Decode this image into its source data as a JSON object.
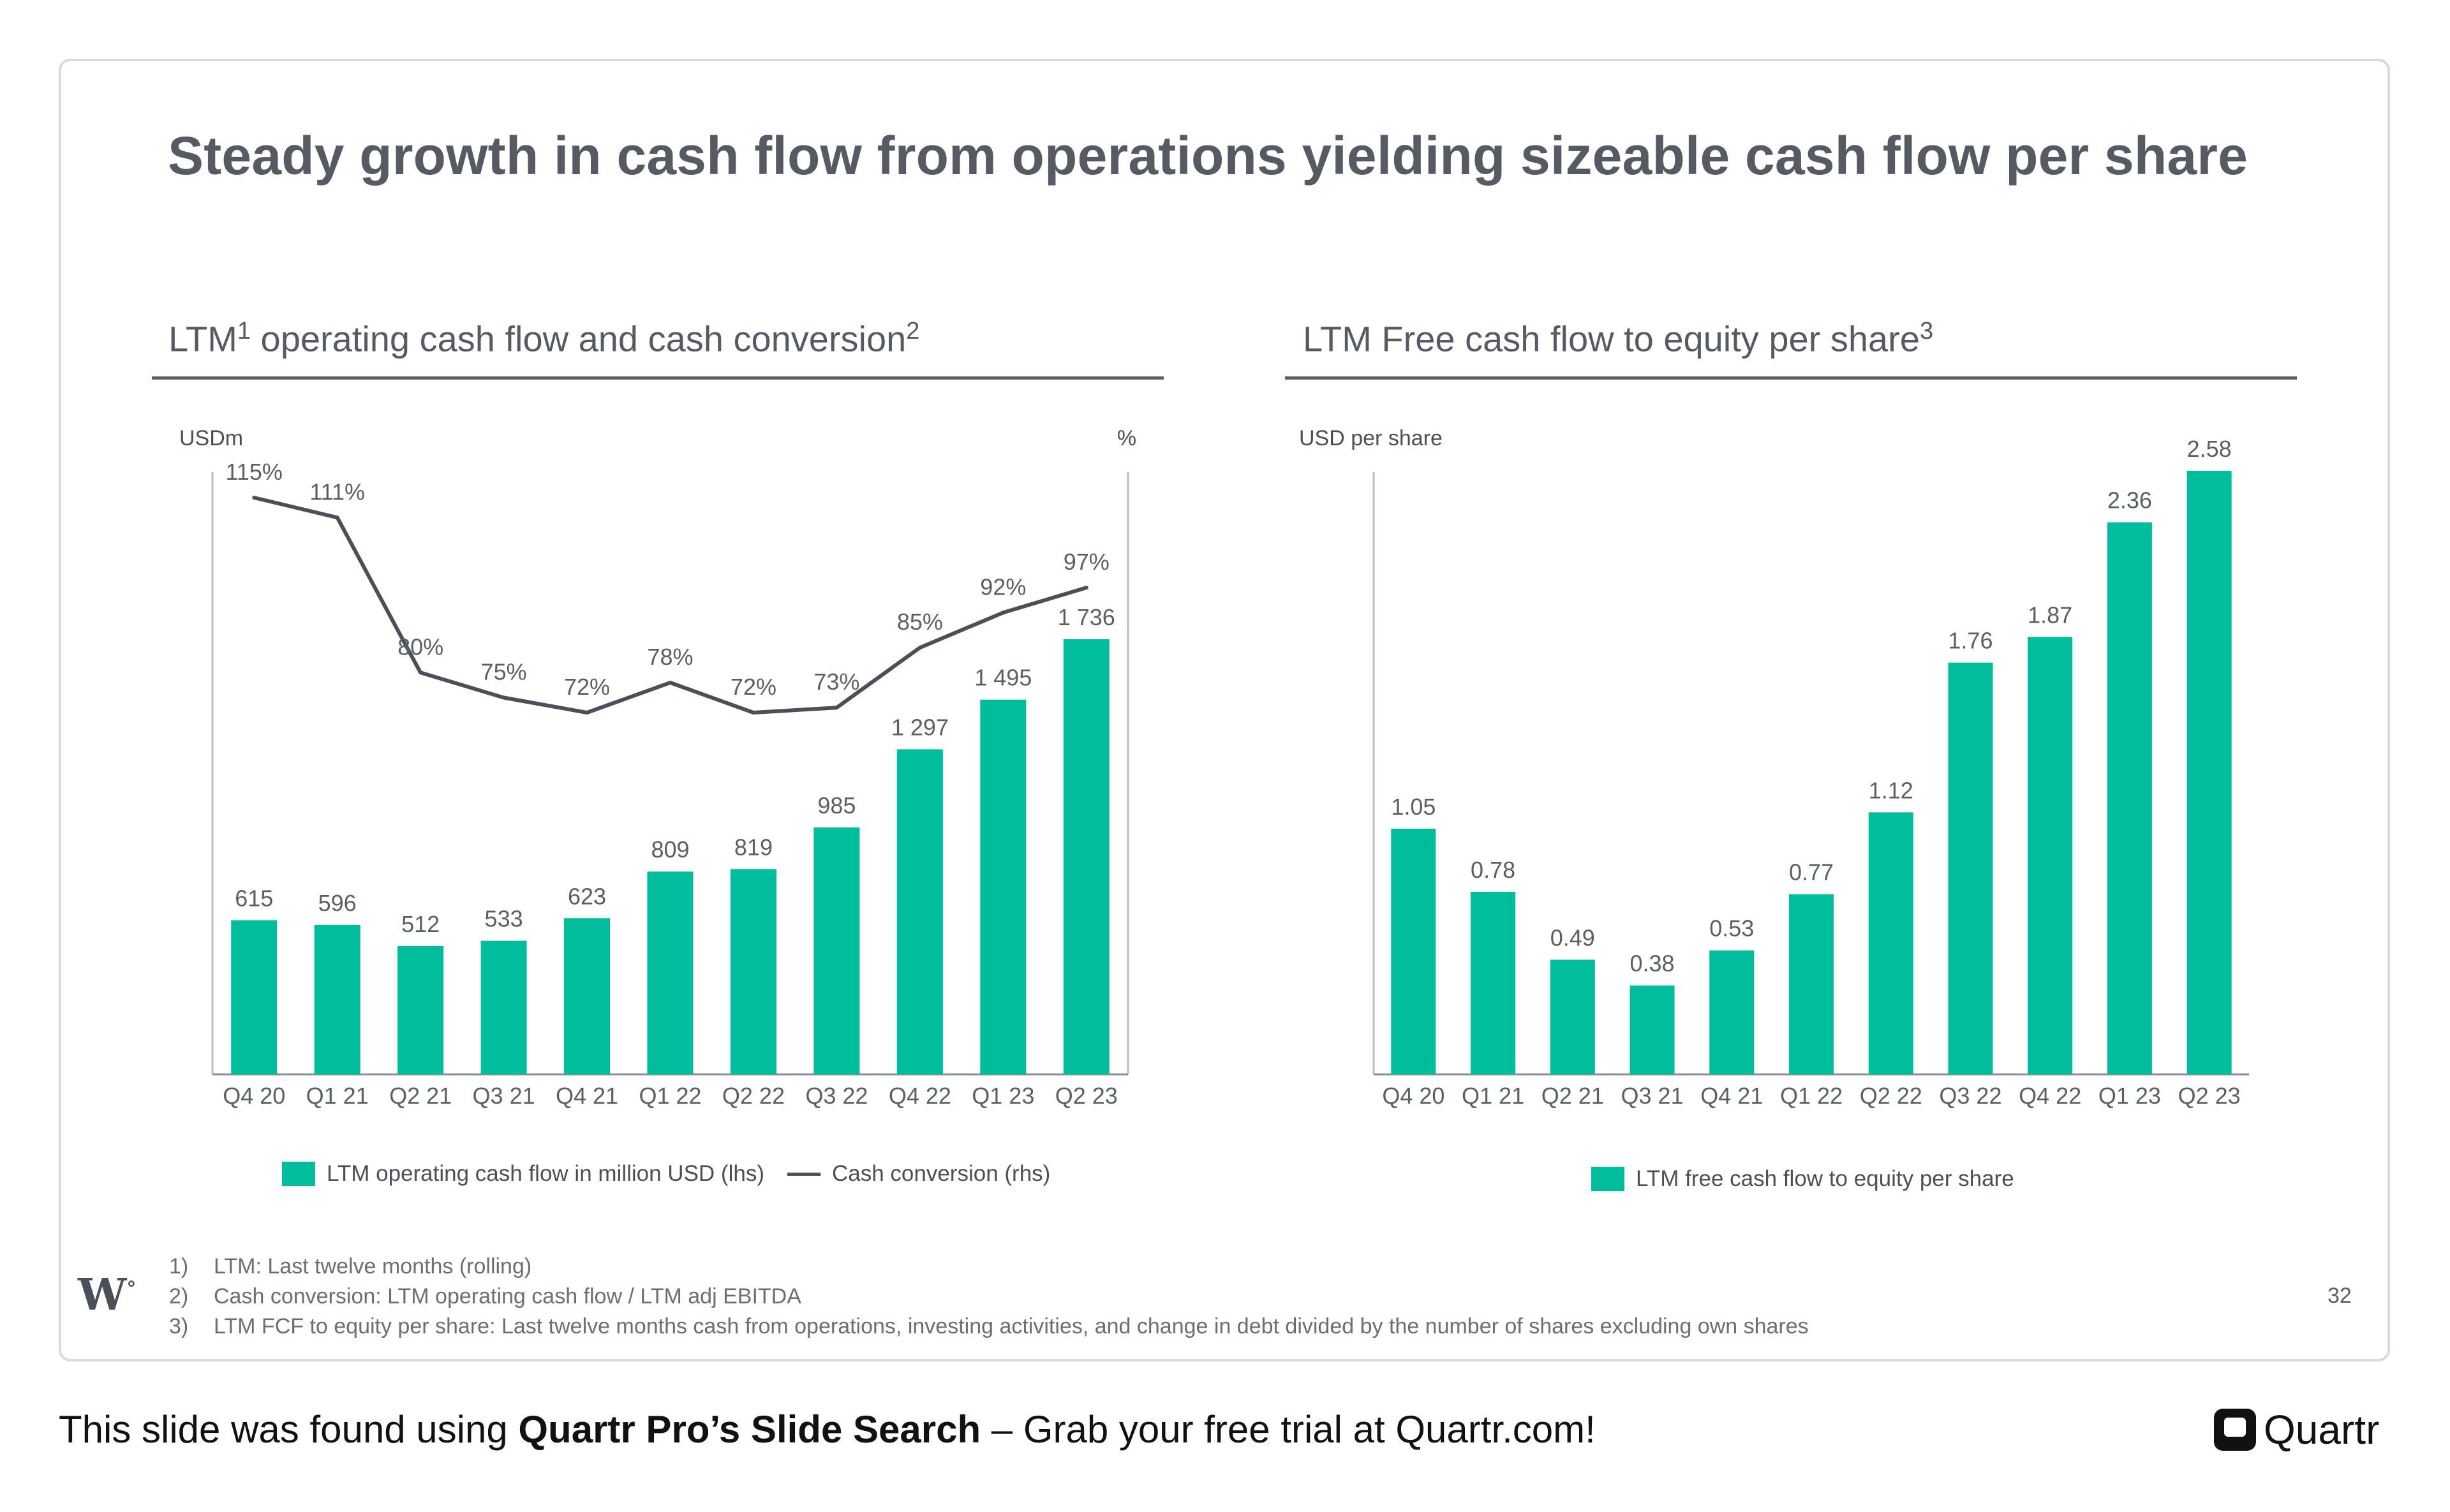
{
  "slide": {
    "title": "Steady growth in cash flow from operations yielding sizeable cash flow per share",
    "page_number": "32",
    "logo_text": "W",
    "footnotes": [
      {
        "num": "1)",
        "text": "LTM: Last twelve months (rolling)"
      },
      {
        "num": "2)",
        "text": "Cash conversion: LTM operating cash flow / LTM adj EBITDA"
      },
      {
        "num": "3)",
        "text": "LTM FCF to equity per share: Last twelve months cash from operations, investing activities, and change in debt divided by the number of shares excluding own shares"
      }
    ]
  },
  "left": {
    "heading": "LTM",
    "heading_sup1": "1",
    "heading_mid": " operating cash flow and cash conversion",
    "heading_sup2": "2",
    "unit_left": "USDm",
    "unit_right": "%",
    "legend_bar": "LTM operating cash flow in million USD (lhs)",
    "legend_line": "Cash conversion (rhs)"
  },
  "right": {
    "heading": "LTM Free cash flow to equity per share",
    "heading_sup": "3",
    "unit": "USD per share",
    "legend_bar": "LTM free cash flow to equity per share"
  },
  "banner": {
    "prefix": "This slide was found using ",
    "bold": "Quartr Pro’s Slide Search",
    "suffix": " – Grab your free trial at Quartr.com!",
    "logo": "Quartr"
  },
  "chart_data": [
    {
      "type": "bar",
      "title": "LTM operating cash flow and cash conversion",
      "categories": [
        "Q4 20",
        "Q1 21",
        "Q2 21",
        "Q3 21",
        "Q4 21",
        "Q1 22",
        "Q2 22",
        "Q3 22",
        "Q4 22",
        "Q1 23",
        "Q2 23"
      ],
      "series": [
        {
          "name": "LTM operating cash flow in million USD (lhs)",
          "kind": "bar",
          "axis": "left",
          "values": [
            615,
            596,
            512,
            533,
            623,
            809,
            819,
            985,
            1297,
            1495,
            1736
          ],
          "labels": [
            "615",
            "596",
            "512",
            "533",
            "623",
            "809",
            "819",
            "985",
            "1 297",
            "1 495",
            "1 736"
          ],
          "color": "#00bd9b"
        },
        {
          "name": "Cash conversion (rhs)",
          "kind": "line",
          "axis": "right",
          "values": [
            115,
            111,
            80,
            75,
            72,
            78,
            72,
            73,
            85,
            92,
            97
          ],
          "labels": [
            "115%",
            "111%",
            "80%",
            "75%",
            "72%",
            "78%",
            "72%",
            "73%",
            "85%",
            "92%",
            "97%"
          ],
          "color": "#4b5058"
        }
      ],
      "ylabel_left": "USDm",
      "ylabel_right": "%",
      "grid": false,
      "legend": "bottom"
    },
    {
      "type": "bar",
      "title": "LTM Free cash flow to equity per share",
      "categories": [
        "Q4 20",
        "Q1 21",
        "Q2 21",
        "Q3 21",
        "Q4 21",
        "Q1 22",
        "Q2 22",
        "Q3 22",
        "Q4 22",
        "Q1 23",
        "Q2 23"
      ],
      "series": [
        {
          "name": "LTM free cash flow to equity per share",
          "values": [
            1.05,
            0.78,
            0.49,
            0.38,
            0.53,
            0.77,
            1.12,
            1.76,
            1.87,
            2.36,
            2.58
          ],
          "labels": [
            "1.05",
            "0.78",
            "0.49",
            "0.38",
            "0.53",
            "0.77",
            "1.12",
            "1.76",
            "1.87",
            "2.36",
            "2.58"
          ],
          "color": "#00bd9b"
        }
      ],
      "ylabel": "USD per share",
      "grid": false,
      "legend": "bottom"
    }
  ]
}
